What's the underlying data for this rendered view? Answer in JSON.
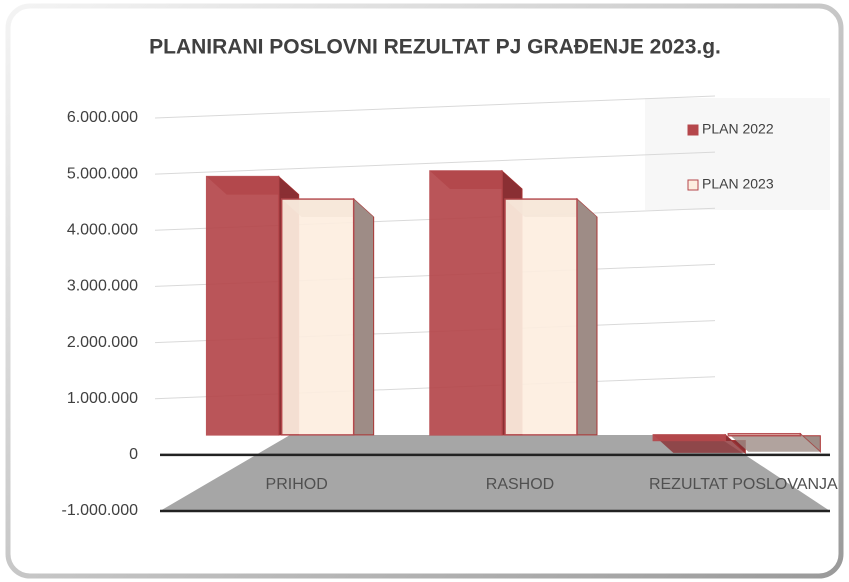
{
  "chart_data": {
    "type": "bar",
    "title": "PLANIRANI POSLOVNI REZULTAT PJ GRAĐENJE 2023.g.",
    "categories": [
      "PRIHOD",
      "RASHOD",
      "REZULTAT POSLOVANJA"
    ],
    "series": [
      {
        "name": "PLAN 2022",
        "color": "#b5474b",
        "values": [
          4600000,
          4700000,
          -100000
        ]
      },
      {
        "name": "PLAN 2023",
        "color": "#fdeee0",
        "values": [
          4200000,
          4200000,
          20000
        ]
      }
    ],
    "ylim": [
      -1000000,
      6000000
    ],
    "yticks": [
      {
        "value": -1000000,
        "label": "-1.000.000"
      },
      0,
      {
        "value": 1000000,
        "label": "1.000.000"
      },
      {
        "value": 2000000,
        "label": "2.000.000"
      },
      {
        "value": 3000000,
        "label": "3.000.000"
      },
      {
        "value": 4000000,
        "label": "4.000.000"
      },
      {
        "value": 5000000,
        "label": "5.000.000"
      },
      {
        "value": 6000000,
        "label": "6.000.000"
      }
    ],
    "grid": true,
    "legend": "top-right"
  }
}
